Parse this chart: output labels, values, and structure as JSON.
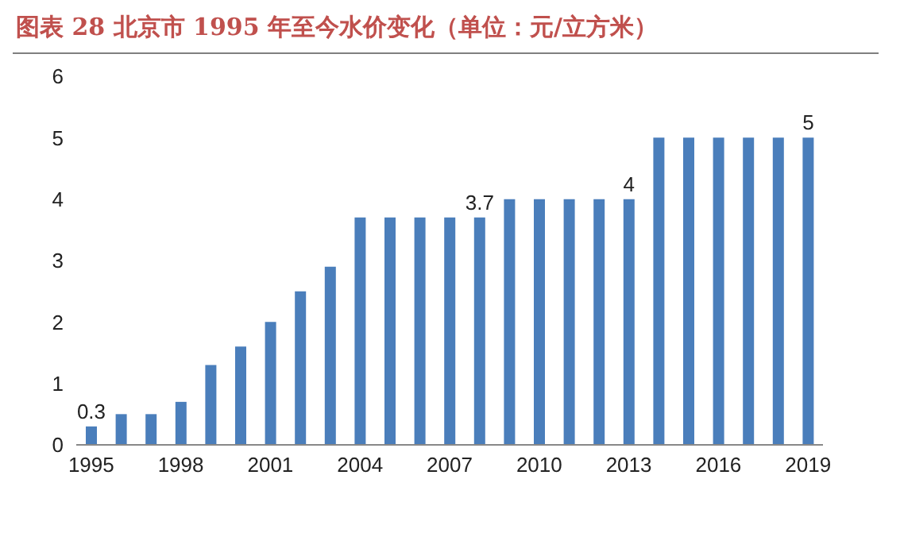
{
  "chart_data": {
    "type": "bar",
    "title": "图表 28  北京市 1995 年至今水价变化（单位：元/立方米）",
    "categories": [
      "1995",
      null,
      null,
      "1998",
      null,
      null,
      "2001",
      null,
      null,
      "2004",
      null,
      null,
      "2007",
      null,
      null,
      "2010",
      null,
      null,
      "2013",
      null,
      null,
      "2016",
      null,
      null,
      "2019"
    ],
    "values": [
      0.3,
      0.5,
      0.5,
      0.7,
      1.3,
      1.6,
      2,
      2.5,
      2.9,
      3.7,
      3.7,
      3.7,
      3.7,
      3.7,
      4,
      4,
      4,
      4,
      4,
      5,
      5,
      5,
      5,
      5,
      5
    ],
    "value_labels": [
      "0.3",
      null,
      null,
      null,
      null,
      null,
      null,
      null,
      null,
      null,
      null,
      null,
      null,
      "3.7",
      null,
      null,
      null,
      null,
      "4",
      null,
      null,
      null,
      null,
      null,
      "5"
    ],
    "color": "#4a7ebb",
    "ylim": [
      0,
      6
    ],
    "yticks": [
      0,
      1,
      2,
      3,
      4,
      5,
      6
    ]
  }
}
